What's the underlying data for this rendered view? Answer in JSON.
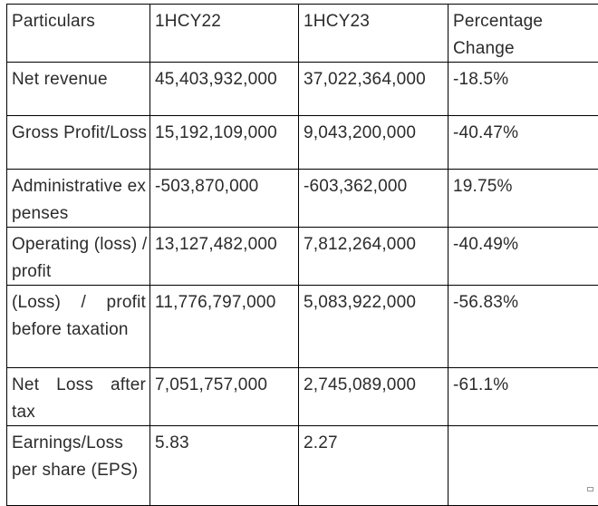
{
  "table": {
    "header": [
      "Particulars",
      "1HCY22",
      "1HCY23",
      "Percentage Change"
    ],
    "rows": [
      [
        "Net revenue",
        "45,403,932,000",
        "37,022,364,000",
        "-18.5%"
      ],
      [
        "Gross Profit/Loss",
        "15,192,109,000",
        "9,043,200,000",
        "-40.47%"
      ],
      [
        "Administrative expenses",
        "-503,870,000",
        "-603,362,000",
        "19.75%"
      ],
      [
        "Operating (loss) / profit",
        "13,127,482,000",
        "7,812,264,000",
        "-40.49%"
      ],
      [
        "(Loss) / profit before taxation",
        "11,776,797,000",
        "5,083,922,000",
        "-56.83%"
      ],
      [
        "Net Loss after tax",
        "7,051,757,000",
        "2,745,089,000",
        "-61.1%"
      ],
      [
        "Earnings/Loss per share (EPS)",
        "5.83",
        "2.27",
        ""
      ]
    ]
  }
}
